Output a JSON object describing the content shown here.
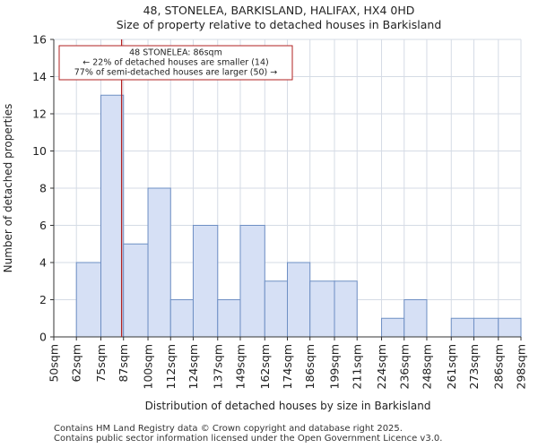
{
  "chart_data": {
    "type": "bar",
    "title_line1": "48, STONELEA, BARKISLAND, HALIFAX, HX4 0HD",
    "title_line2": "Size of property relative to detached houses in Barkisland",
    "xlabel": "Distribution of detached houses by size in Barkisland",
    "ylabel": "Number of detached properties",
    "ylim": [
      0,
      16
    ],
    "yticks": [
      "0",
      "2",
      "4",
      "6",
      "8",
      "10",
      "12",
      "14",
      "16"
    ],
    "bin_edges": [
      50,
      62,
      75,
      87,
      100,
      112,
      124,
      137,
      149,
      162,
      174,
      186,
      199,
      211,
      224,
      236,
      248,
      261,
      273,
      286,
      298
    ],
    "tick_labels": [
      "50sqm",
      "62sqm",
      "75sqm",
      "87sqm",
      "100sqm",
      "112sqm",
      "124sqm",
      "137sqm",
      "149sqm",
      "162sqm",
      "174sqm",
      "186sqm",
      "199sqm",
      "211sqm",
      "224sqm",
      "236sqm",
      "248sqm",
      "261sqm",
      "273sqm",
      "286sqm",
      "298sqm"
    ],
    "values": [
      0,
      4,
      13,
      5,
      8,
      2,
      6,
      2,
      6,
      3,
      4,
      3,
      3,
      0,
      1,
      2,
      0,
      1,
      1,
      1
    ],
    "marker_value": 86,
    "annotation": [
      "48 STONELEA: 86sqm",
      "← 22% of detached houses are smaller (14)",
      "77% of semi-detached houses are larger (50) →"
    ],
    "colors": {
      "bar_fill": "#d6e0f5",
      "bar_edge": "#6e8fc4",
      "marker": "#b22222",
      "grid": "#d5dbe5"
    }
  },
  "footer": {
    "line1": "Contains HM Land Registry data © Crown copyright and database right 2025.",
    "line2": "Contains public sector information licensed under the Open Government Licence v3.0."
  }
}
